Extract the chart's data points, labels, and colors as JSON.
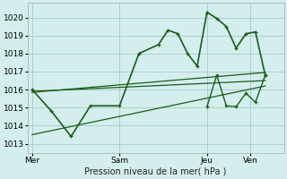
{
  "background_color": "#d4eeed",
  "grid_color": "#b0cccc",
  "line_color": "#1a5c1a",
  "title": "Pression niveau de la mer( hPa )",
  "x_ticks_labels": [
    "Mer",
    "Sam",
    "Jeu",
    "Ven"
  ],
  "x_ticks_pos": [
    0.0,
    0.375,
    0.75,
    0.9375
  ],
  "ylim": [
    1012.5,
    1020.8
  ],
  "yticks": [
    1013,
    1014,
    1015,
    1016,
    1017,
    1018,
    1019,
    1020
  ],
  "series": [
    {
      "x": [
        0.0,
        0.083,
        0.167,
        0.25,
        0.375,
        0.458,
        0.542,
        0.583,
        0.625,
        0.667,
        0.708,
        0.75,
        0.792,
        0.833,
        0.875,
        0.917,
        0.958,
        1.0
      ],
      "y": [
        1016.0,
        1014.8,
        1013.4,
        1015.1,
        1015.1,
        1018.0,
        1018.5,
        1019.3,
        1019.1,
        1018.0,
        1017.3,
        1020.3,
        1019.95,
        1019.5,
        1018.3,
        1019.1,
        1019.2,
        1016.8
      ],
      "marker": true,
      "lw": 1.2
    },
    {
      "x": [
        0.0,
        1.0
      ],
      "y": [
        1013.5,
        1016.2
      ],
      "marker": false,
      "lw": 0.9
    },
    {
      "x": [
        0.0,
        1.0
      ],
      "y": [
        1015.9,
        1016.5
      ],
      "marker": false,
      "lw": 0.9
    },
    {
      "x": [
        0.0,
        1.0
      ],
      "y": [
        1015.85,
        1016.95
      ],
      "marker": false,
      "lw": 0.9
    },
    {
      "x": [
        0.75,
        0.792,
        0.833,
        0.875,
        0.917,
        0.958,
        1.0
      ],
      "y": [
        1015.05,
        1016.8,
        1015.1,
        1015.05,
        1015.8,
        1015.3,
        1016.8
      ],
      "marker": true,
      "lw": 1.0
    }
  ]
}
